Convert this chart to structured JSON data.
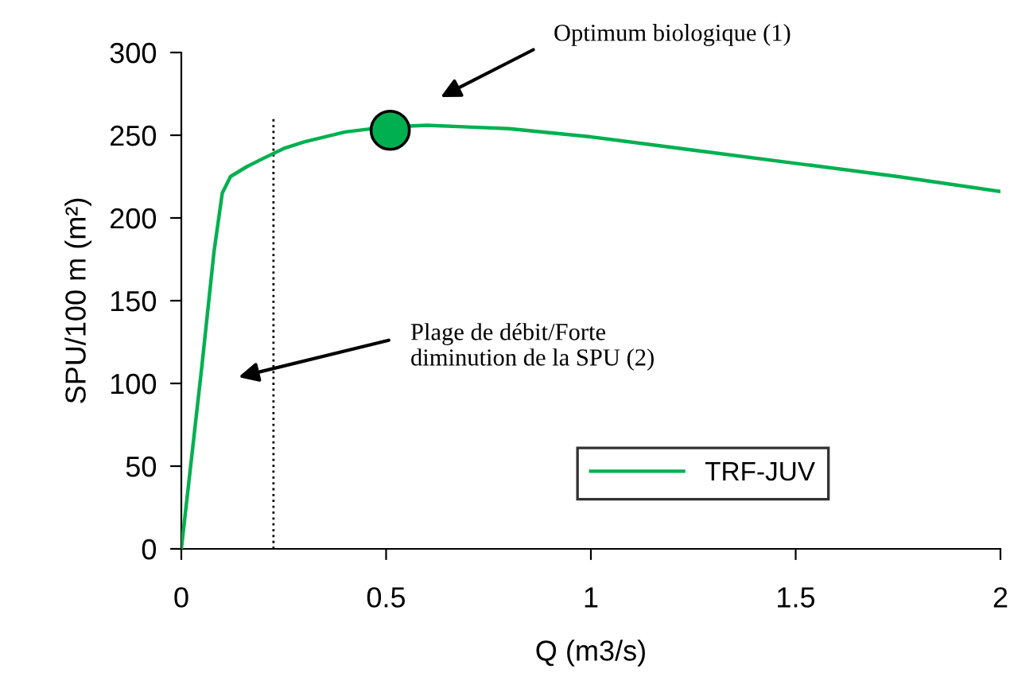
{
  "chart_data": {
    "type": "line",
    "xlabel": "Q (m3/s)",
    "ylabel": "SPU/100 m (m²)",
    "xlim": [
      0,
      2
    ],
    "xticks": [
      0,
      0.5,
      1,
      1.5,
      2
    ],
    "ylim": [
      0,
      300
    ],
    "yticks": [
      0,
      50,
      100,
      150,
      200,
      250,
      300
    ],
    "grid": false,
    "legend": "bottom right",
    "series": [
      {
        "name": "TRF-JUV",
        "color": "#00b050",
        "x": [
          0,
          0.05,
          0.08,
          0.1,
          0.12,
          0.16,
          0.2,
          0.25,
          0.3,
          0.4,
          0.5,
          0.6,
          0.7,
          0.8,
          1.0,
          1.25,
          1.5,
          1.75,
          2.0
        ],
        "values": [
          0,
          110,
          180,
          215,
          225,
          231,
          236,
          242,
          246,
          252,
          255,
          256,
          255,
          254,
          249,
          241,
          233,
          225,
          216
        ]
      },
      {
        "color": "#00b050",
        "type": "scatter",
        "marker": "circle",
        "x": [
          0.51
        ],
        "values": [
          253
        ]
      }
    ],
    "ref_lines": [
      {
        "axis": "x",
        "value": 0.225,
        "line_style": "dotted",
        "color": "#000000"
      }
    ],
    "annotations": [
      "Optimum biologique (1)",
      "Plage de débit/Forte\ndiminution de la SPU (2)"
    ]
  }
}
